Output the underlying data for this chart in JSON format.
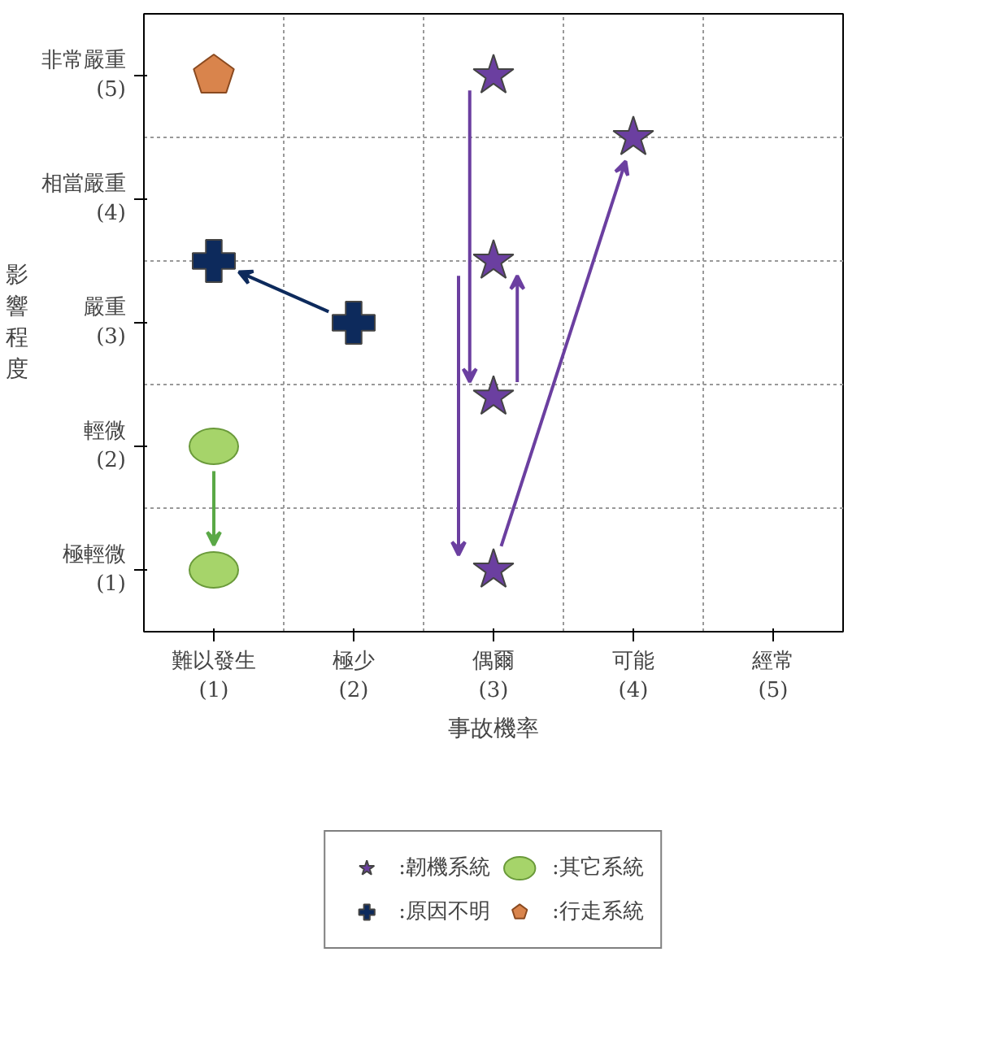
{
  "chart_data": {
    "type": "scatter",
    "xlabel": "事故機率",
    "ylabel": "影響程度",
    "xlim": [
      0.5,
      5.5
    ],
    "ylim": [
      0.5,
      5.5
    ],
    "xticks": [
      {
        "value": 1,
        "label": "難以發生\n(1)"
      },
      {
        "value": 2,
        "label": "極少\n(2)"
      },
      {
        "value": 3,
        "label": "偶爾\n(3)"
      },
      {
        "value": 4,
        "label": "可能\n(4)"
      },
      {
        "value": 5,
        "label": "經常\n(5)"
      }
    ],
    "yticks": [
      {
        "value": 1,
        "label": "極輕微\n(1)"
      },
      {
        "value": 2,
        "label": "輕微\n(2)"
      },
      {
        "value": 3,
        "label": "嚴重\n(3)"
      },
      {
        "value": 4,
        "label": "相當嚴重\n(4)"
      },
      {
        "value": 5,
        "label": "非常嚴重\n(5)"
      }
    ],
    "grid": true,
    "legend": "bottom",
    "series": [
      {
        "name": ":韌機系統",
        "color": "#6b3fa0",
        "marker": "star",
        "x": [
          3,
          4,
          3,
          3,
          3
        ],
        "values": [
          5,
          4.5,
          3.5,
          2.4,
          1.0
        ]
      },
      {
        "name": ":原因不明",
        "color": "#0d2a5c",
        "marker": "cross",
        "x": [
          1,
          2
        ],
        "values": [
          3.5,
          3.0
        ]
      },
      {
        "name": ":其它系統",
        "color": "#a6d46a",
        "marker": "circle",
        "x": [
          1,
          1
        ],
        "values": [
          2.0,
          1.0
        ]
      },
      {
        "name": ":行走系統",
        "color": "#d9844c",
        "x": [
          1
        ],
        "values": [
          5.0
        ]
      }
    ]
  }
}
